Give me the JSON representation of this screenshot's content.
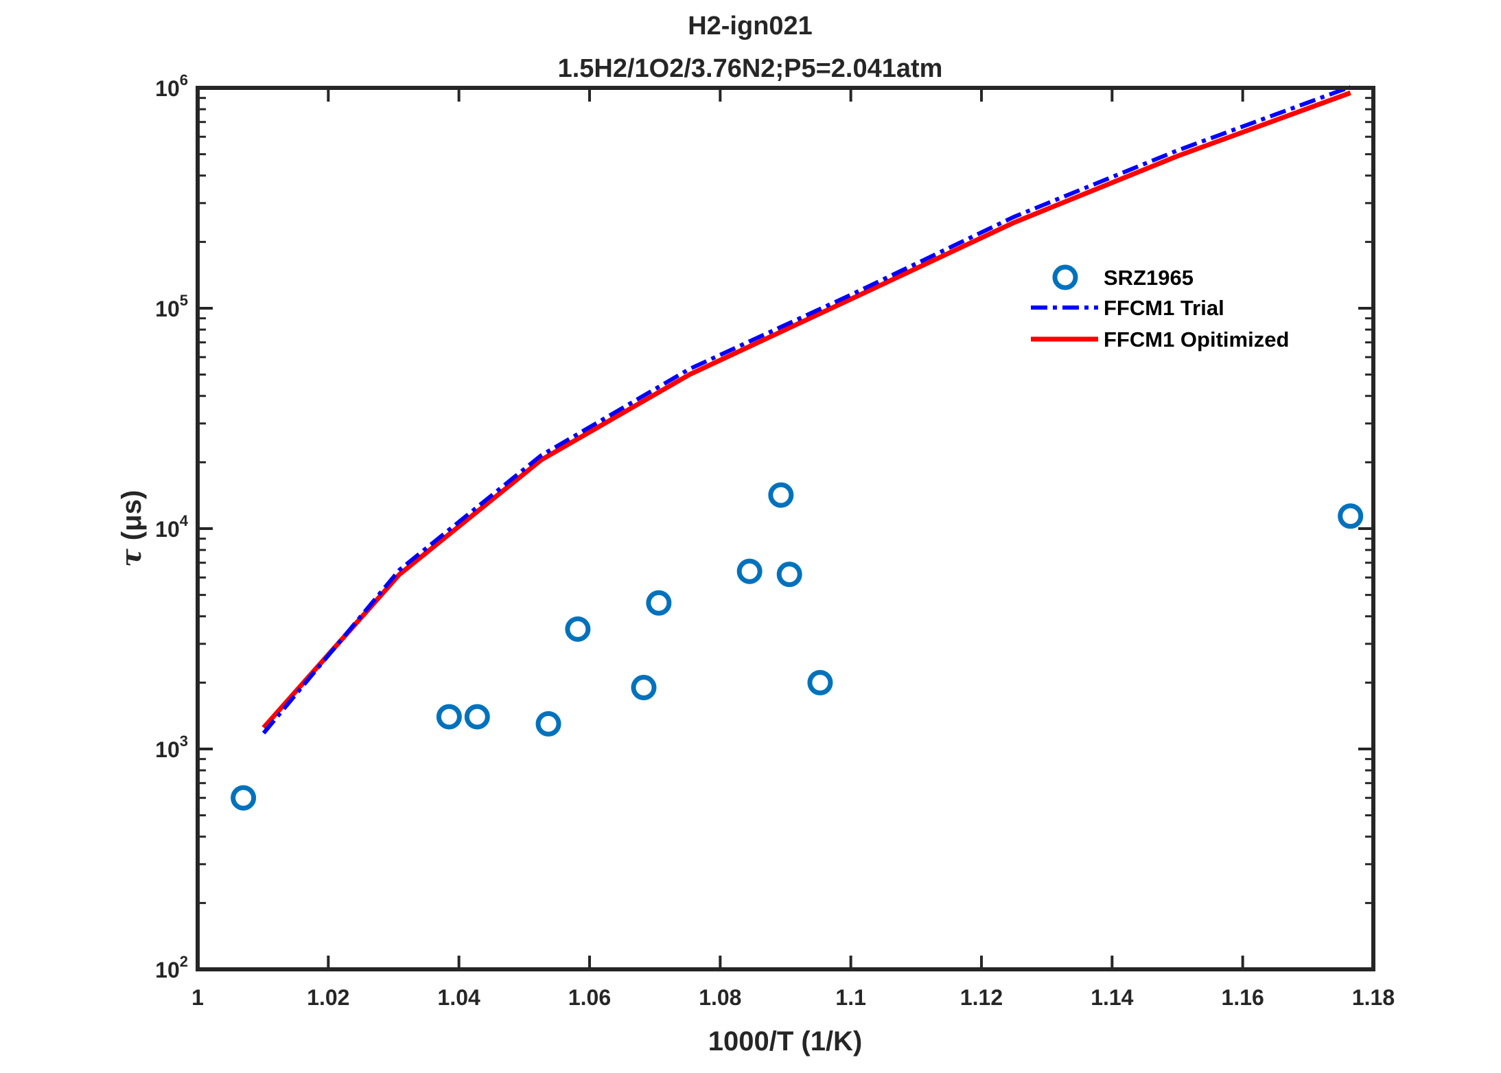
{
  "chart_data": {
    "type": "scatter",
    "title": "H2-ign021",
    "subtitle": "1.5H2/1O2/3.76N2;P5=2.041atm",
    "xlabel": "1000/T (1/K)",
    "ylabel": {
      "symbol": "τ",
      "unit": "(μs)"
    },
    "xlim": [
      1.0,
      1.18
    ],
    "ylim": [
      100,
      1000000
    ],
    "yscale": "log",
    "grid": false,
    "legend_position": "top-right",
    "x_ticks": [
      "1",
      "1.02",
      "1.04",
      "1.06",
      "1.08",
      "1.1",
      "1.12",
      "1.14",
      "1.16",
      "1.18"
    ],
    "x_tick_values": [
      1.0,
      1.02,
      1.04,
      1.06,
      1.08,
      1.1,
      1.12,
      1.14,
      1.16,
      1.18
    ],
    "y_ticks": [
      {
        "value": 100,
        "base": "10",
        "exp": "2"
      },
      {
        "value": 1000,
        "base": "10",
        "exp": "3"
      },
      {
        "value": 10000,
        "base": "10",
        "exp": "4"
      },
      {
        "value": 100000,
        "base": "10",
        "exp": "5"
      },
      {
        "value": 1000000,
        "base": "10",
        "exp": "6"
      }
    ],
    "series": [
      {
        "name": "SRZ1965",
        "kind": "scatter",
        "marker": "circle",
        "color": "#0072BD",
        "x": [
          1.007,
          1.0385,
          1.0428,
          1.0537,
          1.0582,
          1.0683,
          1.0706,
          1.0845,
          1.0893,
          1.0906,
          1.0953,
          1.1765
        ],
        "y": [
          600,
          1400,
          1400,
          1300,
          3500,
          1900,
          4600,
          6400,
          14200,
          6200,
          2000,
          11400
        ]
      },
      {
        "name": "FFCM1 Trial",
        "kind": "line",
        "style": "dashdot",
        "color": "#0000FF",
        "x": [
          1.0101,
          1.0309,
          1.0526,
          1.0753,
          1.1,
          1.125,
          1.15,
          1.1765
        ],
        "y": [
          1180,
          6500,
          21500,
          53000,
          115000,
          260000,
          520000,
          1010000
        ]
      },
      {
        "name": "FFCM1 Opitimized",
        "kind": "line",
        "style": "solid",
        "color": "#FF0000",
        "x": [
          1.0101,
          1.0309,
          1.0526,
          1.0753,
          1.1,
          1.125,
          1.15,
          1.1765
        ],
        "y": [
          1250,
          6200,
          20500,
          50000,
          110000,
          245000,
          490000,
          950000
        ]
      }
    ]
  }
}
